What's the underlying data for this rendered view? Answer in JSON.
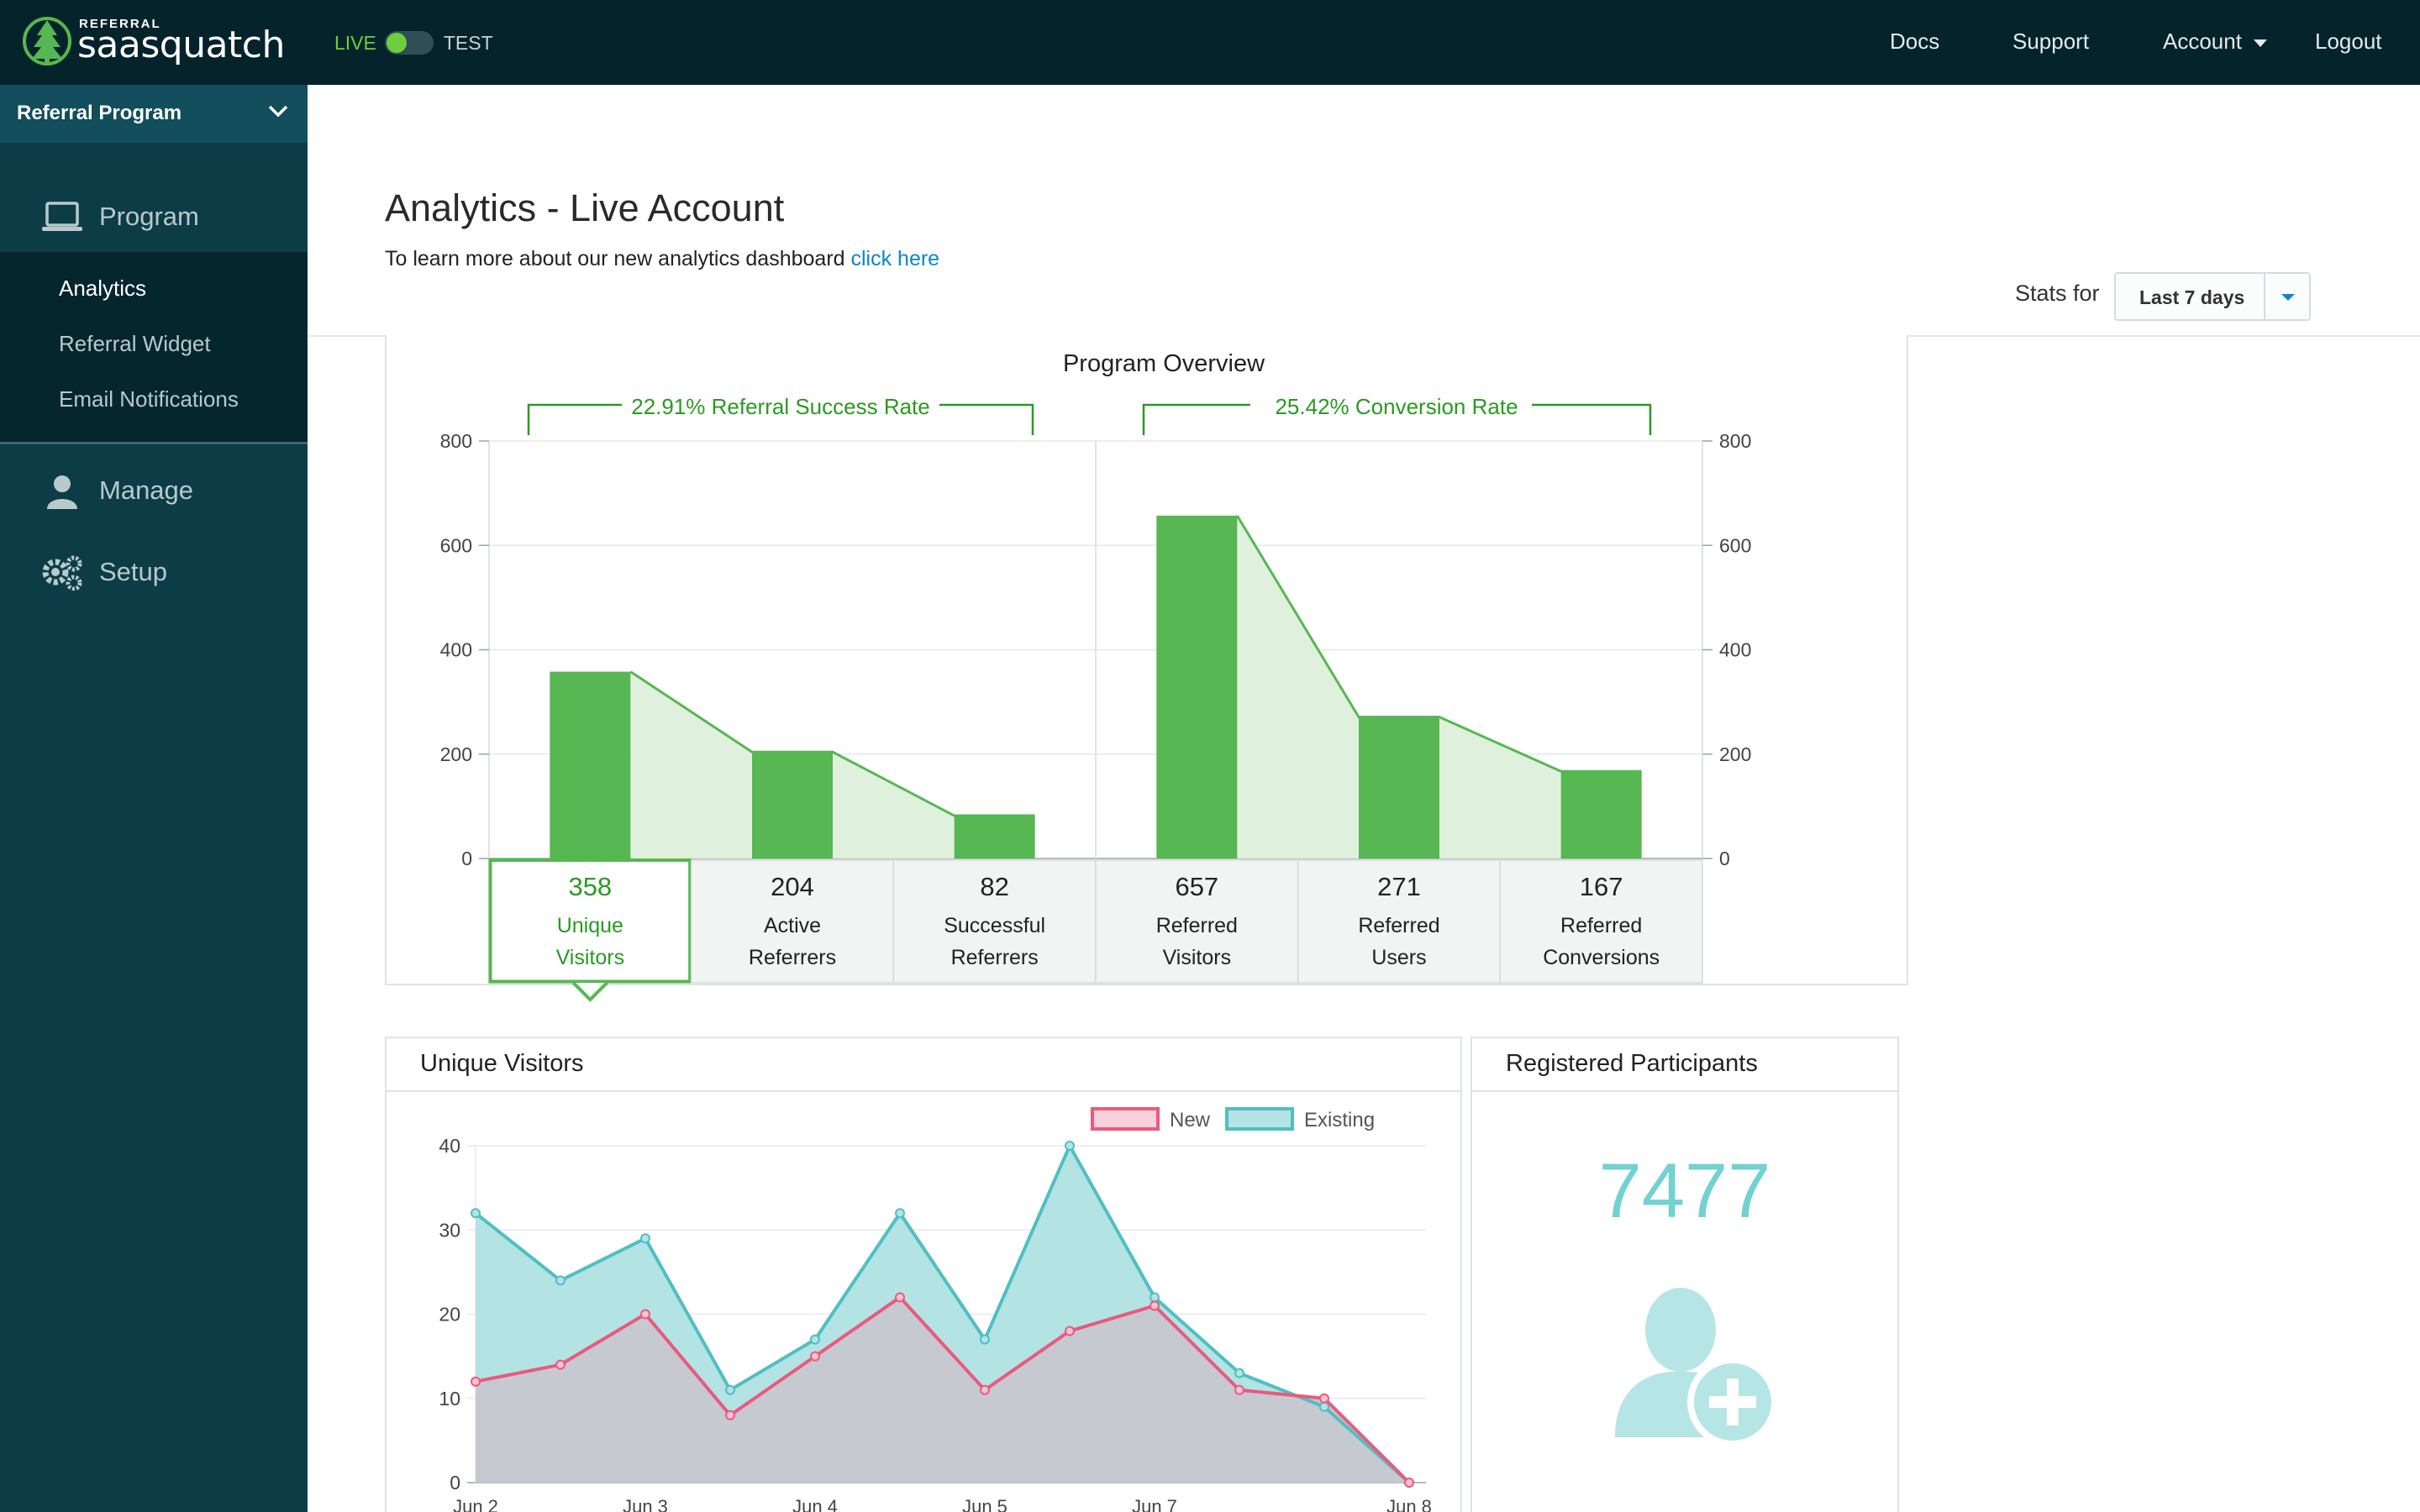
{
  "topbar": {
    "brand_small": "REFERRAL",
    "brand_name": "saasquatch",
    "env_live": "LIVE",
    "env_test": "TEST",
    "nav": {
      "docs": "Docs",
      "support": "Support",
      "account": "Account",
      "logout": "Logout"
    }
  },
  "sidebar": {
    "program_select": "Referral Program",
    "sections": {
      "program": "Program",
      "manage": "Manage",
      "setup": "Setup"
    },
    "program_items": [
      "Analytics",
      "Referral Widget",
      "Email Notifications"
    ],
    "active_item": "Analytics"
  },
  "main": {
    "title": "Analytics - Live Account",
    "subtitle_prefix": "To learn more about our new analytics dashboard",
    "subtitle_link": "click here",
    "stats_for_label": "Stats for",
    "stats_range": "Last 7 days"
  },
  "colors": {
    "green": "#57b752",
    "dark_green": "#2a9a22",
    "pink": "#ea5a7d",
    "teal": "#4fbfc2",
    "teal_light": "#74d1d1",
    "link_blue": "#0d86c8",
    "topbar_bg": "#05232a",
    "sidebar_bg": "#0c3d47"
  },
  "overview": {
    "title": "Program Overview",
    "rate_left": "22.91% Referral Success Rate",
    "rate_right": "25.42% Conversion Rate",
    "selected_index": 0,
    "stats": [
      {
        "value": "358",
        "line1": "Unique",
        "line2": "Visitors"
      },
      {
        "value": "204",
        "line1": "Active",
        "line2": "Referrers"
      },
      {
        "value": "82",
        "line1": "Successful",
        "line2": "Referrers"
      },
      {
        "value": "657",
        "line1": "Referred",
        "line2": "Visitors"
      },
      {
        "value": "271",
        "line1": "Referred",
        "line2": "Users"
      },
      {
        "value": "167",
        "line1": "Referred",
        "line2": "Conversions"
      }
    ]
  },
  "visitors_panel": {
    "title": "Unique Visitors"
  },
  "participants_panel": {
    "title": "Registered Participants",
    "count": "7477",
    "icon": "add-user-icon"
  },
  "chart_data": [
    {
      "type": "bar",
      "title": "Program Overview",
      "categories": [
        "Unique Visitors",
        "Active Referrers",
        "Successful Referrers",
        "Referred Visitors",
        "Referred Users",
        "Referred Conversions"
      ],
      "values": [
        358,
        204,
        82,
        657,
        271,
        167
      ],
      "ylim": [
        0,
        800
      ],
      "yticks": [
        0,
        200,
        400,
        600,
        800
      ],
      "annotations": [
        "22.91% Referral Success Rate",
        "25.42% Conversion Rate"
      ]
    },
    {
      "type": "area",
      "title": "Unique Visitors",
      "x": [
        "Jun 2",
        "",
        "Jun 3",
        "",
        "Jun 4",
        "",
        "Jun 5",
        "",
        "Jun 7",
        "",
        "",
        "Jun 8"
      ],
      "x_tick_labels": [
        "Jun 2",
        "Jun 3",
        "Jun 4",
        "Jun 5",
        "Jun 7",
        "Jun 8"
      ],
      "series": [
        {
          "name": "New",
          "values": [
            12,
            14,
            20,
            8,
            15,
            22,
            11,
            18,
            21,
            11,
            10,
            0
          ]
        },
        {
          "name": "Existing",
          "values": [
            32,
            24,
            29,
            11,
            17,
            32,
            17,
            40,
            22,
            13,
            9,
            0
          ]
        }
      ],
      "ylim": [
        0,
        40
      ],
      "yticks": [
        0,
        10,
        20,
        30,
        40
      ],
      "legend": "top-right",
      "grid": true
    }
  ]
}
